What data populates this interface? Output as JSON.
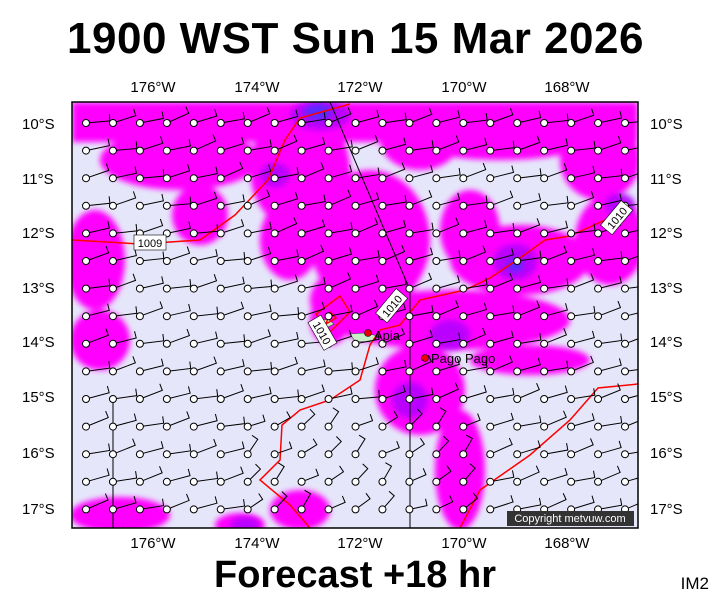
{
  "header": {
    "title": "1900 WST Sun 15 Mar 2026"
  },
  "footer": {
    "forecast": "Forecast +18 hr",
    "image_code": "IM2"
  },
  "map": {
    "lon_labels": [
      "176°W",
      "174°W",
      "172°W",
      "170°W",
      "168°W"
    ],
    "lat_labels": [
      "10°S",
      "11°S",
      "12°S",
      "13°S",
      "14°S",
      "15°S",
      "16°S",
      "17°S"
    ],
    "isobar_labels": [
      "1009",
      "1010",
      "1010",
      "1010"
    ],
    "places": [
      "Apia",
      "Pago Pago"
    ],
    "copyright": "Copyright metvuw.com",
    "colors": {
      "background": "#e6e6fa",
      "rain_light": "#ff00ff",
      "rain_medium": "#aa00ff",
      "rain_heavy": "#5a2cff",
      "isobar": "#ff0000"
    }
  }
}
